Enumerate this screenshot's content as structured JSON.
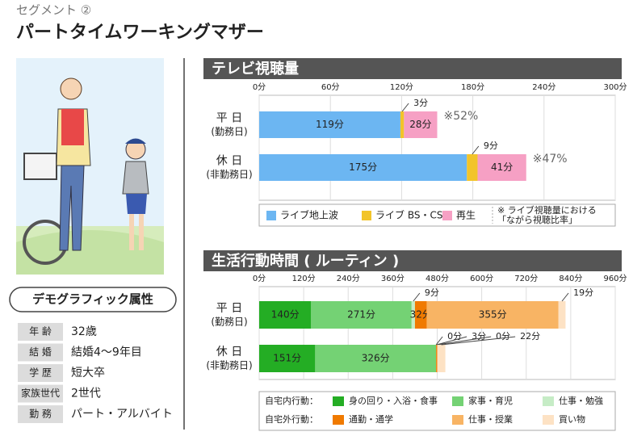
{
  "header": {
    "segment": "セグメント ②",
    "title": "パートタイムワーキングマザー"
  },
  "demographics": {
    "title": "デモグラフィック属性",
    "rows": [
      [
        "年 齢",
        "32歳"
      ],
      [
        "結 婚",
        "結婚4〜9年目"
      ],
      [
        "学 歴",
        "短大卒"
      ],
      [
        "家族世代",
        "2世代"
      ],
      [
        "勤 務",
        "パート・アルバイト"
      ]
    ]
  },
  "chart_data": [
    {
      "type": "stacked-bar",
      "title": "テレビ視聴量",
      "orientation": "horizontal",
      "categories": [
        "平 日",
        "休 日"
      ],
      "category_notes": [
        "(勤務日)",
        "(非勤務日)"
      ],
      "xlim": [
        0,
        300
      ],
      "xticks": [
        {
          "value": 0,
          "label": "0分"
        },
        {
          "value": 60,
          "label": "60分"
        },
        {
          "value": 120,
          "label": "120分"
        },
        {
          "value": 180,
          "label": "180分"
        },
        {
          "value": 240,
          "label": "240分"
        },
        {
          "value": 300,
          "label": "300分"
        }
      ],
      "grid": true,
      "series": [
        {
          "name": "ライブ地上波",
          "color": "#6cb6f2",
          "values": [
            119,
            175
          ],
          "value_labels": [
            "119分",
            "175分"
          ]
        },
        {
          "name": "ライブ BS・CS",
          "color": "#f2c42a",
          "values": [
            3,
            9
          ],
          "value_labels": [
            "3分",
            "9分"
          ]
        },
        {
          "name": "再生",
          "color": "#f6a0c4",
          "values": [
            28,
            41
          ],
          "value_labels": [
            "28分",
            "41分"
          ]
        }
      ],
      "ratio_labels": [
        "※52%",
        "※47%"
      ],
      "legend_note": [
        "※ ライブ視聴量における",
        "「ながら視聴比率」"
      ]
    },
    {
      "type": "stacked-bar",
      "title": "生活行動時間 ( ルーティン )",
      "orientation": "horizontal",
      "categories": [
        "平 日",
        "休 日"
      ],
      "category_notes": [
        "(勤務日)",
        "(非勤務日)"
      ],
      "xlim": [
        0,
        960
      ],
      "xticks": [
        {
          "value": 0,
          "label": "0分"
        },
        {
          "value": 120,
          "label": "120分"
        },
        {
          "value": 240,
          "label": "240分"
        },
        {
          "value": 360,
          "label": "360分"
        },
        {
          "value": 480,
          "label": "480分"
        },
        {
          "value": 600,
          "label": "600分"
        },
        {
          "value": 720,
          "label": "720分"
        },
        {
          "value": 840,
          "label": "840分"
        },
        {
          "value": 960,
          "label": "960分"
        }
      ],
      "grid": true,
      "legend_groups": [
        "自宅内行動：",
        "自宅外行動："
      ],
      "series": [
        {
          "name": "身の回り・入浴・食事",
          "color": "#24ad24",
          "values": [
            140,
            151
          ],
          "value_labels": [
            "140分",
            "151分"
          ]
        },
        {
          "name": "家事・育児",
          "color": "#74d274",
          "values": [
            271,
            326
          ],
          "value_labels": [
            "271分",
            "326分"
          ]
        },
        {
          "name": "仕事・勉強",
          "color": "#c6ecc6",
          "values": [
            9,
            0
          ],
          "value_labels": [
            "9分",
            "0分"
          ]
        },
        {
          "name": "通勤・通学",
          "color": "#f07a00",
          "values": [
            32,
            3
          ],
          "value_labels": [
            "32分",
            "3分"
          ]
        },
        {
          "name": "仕事・授業",
          "color": "#f8b464",
          "values": [
            355,
            0
          ],
          "value_labels": [
            "355分",
            "0分"
          ]
        },
        {
          "name": "買い物",
          "color": "#fde2c4",
          "values": [
            19,
            22
          ],
          "value_labels": [
            "19分",
            "22分"
          ]
        }
      ]
    }
  ]
}
